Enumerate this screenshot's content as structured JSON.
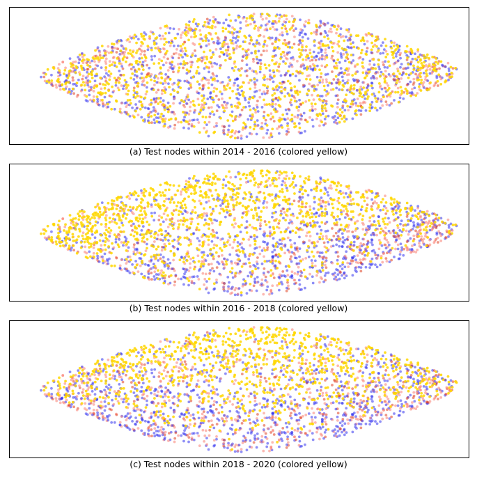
{
  "chart_data": [
    {
      "type": "scatter",
      "caption": "(a) Test nodes within 2014 - 2016 (colored yellow)",
      "highlight_range": "2014 - 2016",
      "highlight_color": "#FFD700",
      "highlight_share": 0.35,
      "highlight_bias": "uniform",
      "axes_visible": false,
      "series": [
        {
          "name": "highlighted test nodes",
          "color": "#FFD700"
        },
        {
          "name": "other nodes (blue)",
          "color": "#3333EE"
        },
        {
          "name": "other nodes (salmon)",
          "color": "#FA8072"
        },
        {
          "name": "other nodes (red)",
          "color": "#E04020"
        }
      ]
    },
    {
      "type": "scatter",
      "caption": "(b) Test nodes within 2016 - 2018 (colored yellow)",
      "highlight_range": "2016 - 2018",
      "highlight_color": "#FFD700",
      "highlight_share": 0.42,
      "highlight_bias": "upper-left",
      "axes_visible": false,
      "series": [
        {
          "name": "highlighted test nodes",
          "color": "#FFD700"
        },
        {
          "name": "other nodes (blue)",
          "color": "#3333EE"
        },
        {
          "name": "other nodes (salmon)",
          "color": "#FA8072"
        },
        {
          "name": "other nodes (red)",
          "color": "#E04020"
        }
      ]
    },
    {
      "type": "scatter",
      "caption": "(c) Test nodes within 2018 - 2020 (colored yellow)",
      "highlight_range": "2018 - 2020",
      "highlight_color": "#FFD700",
      "highlight_share": 0.45,
      "highlight_bias": "upper-center",
      "axes_visible": false,
      "series": [
        {
          "name": "highlighted test nodes",
          "color": "#FFD700"
        },
        {
          "name": "other nodes (blue)",
          "color": "#3333EE"
        },
        {
          "name": "other nodes (salmon)",
          "color": "#FA8072"
        },
        {
          "name": "other nodes (red)",
          "color": "#E04020"
        }
      ]
    }
  ]
}
